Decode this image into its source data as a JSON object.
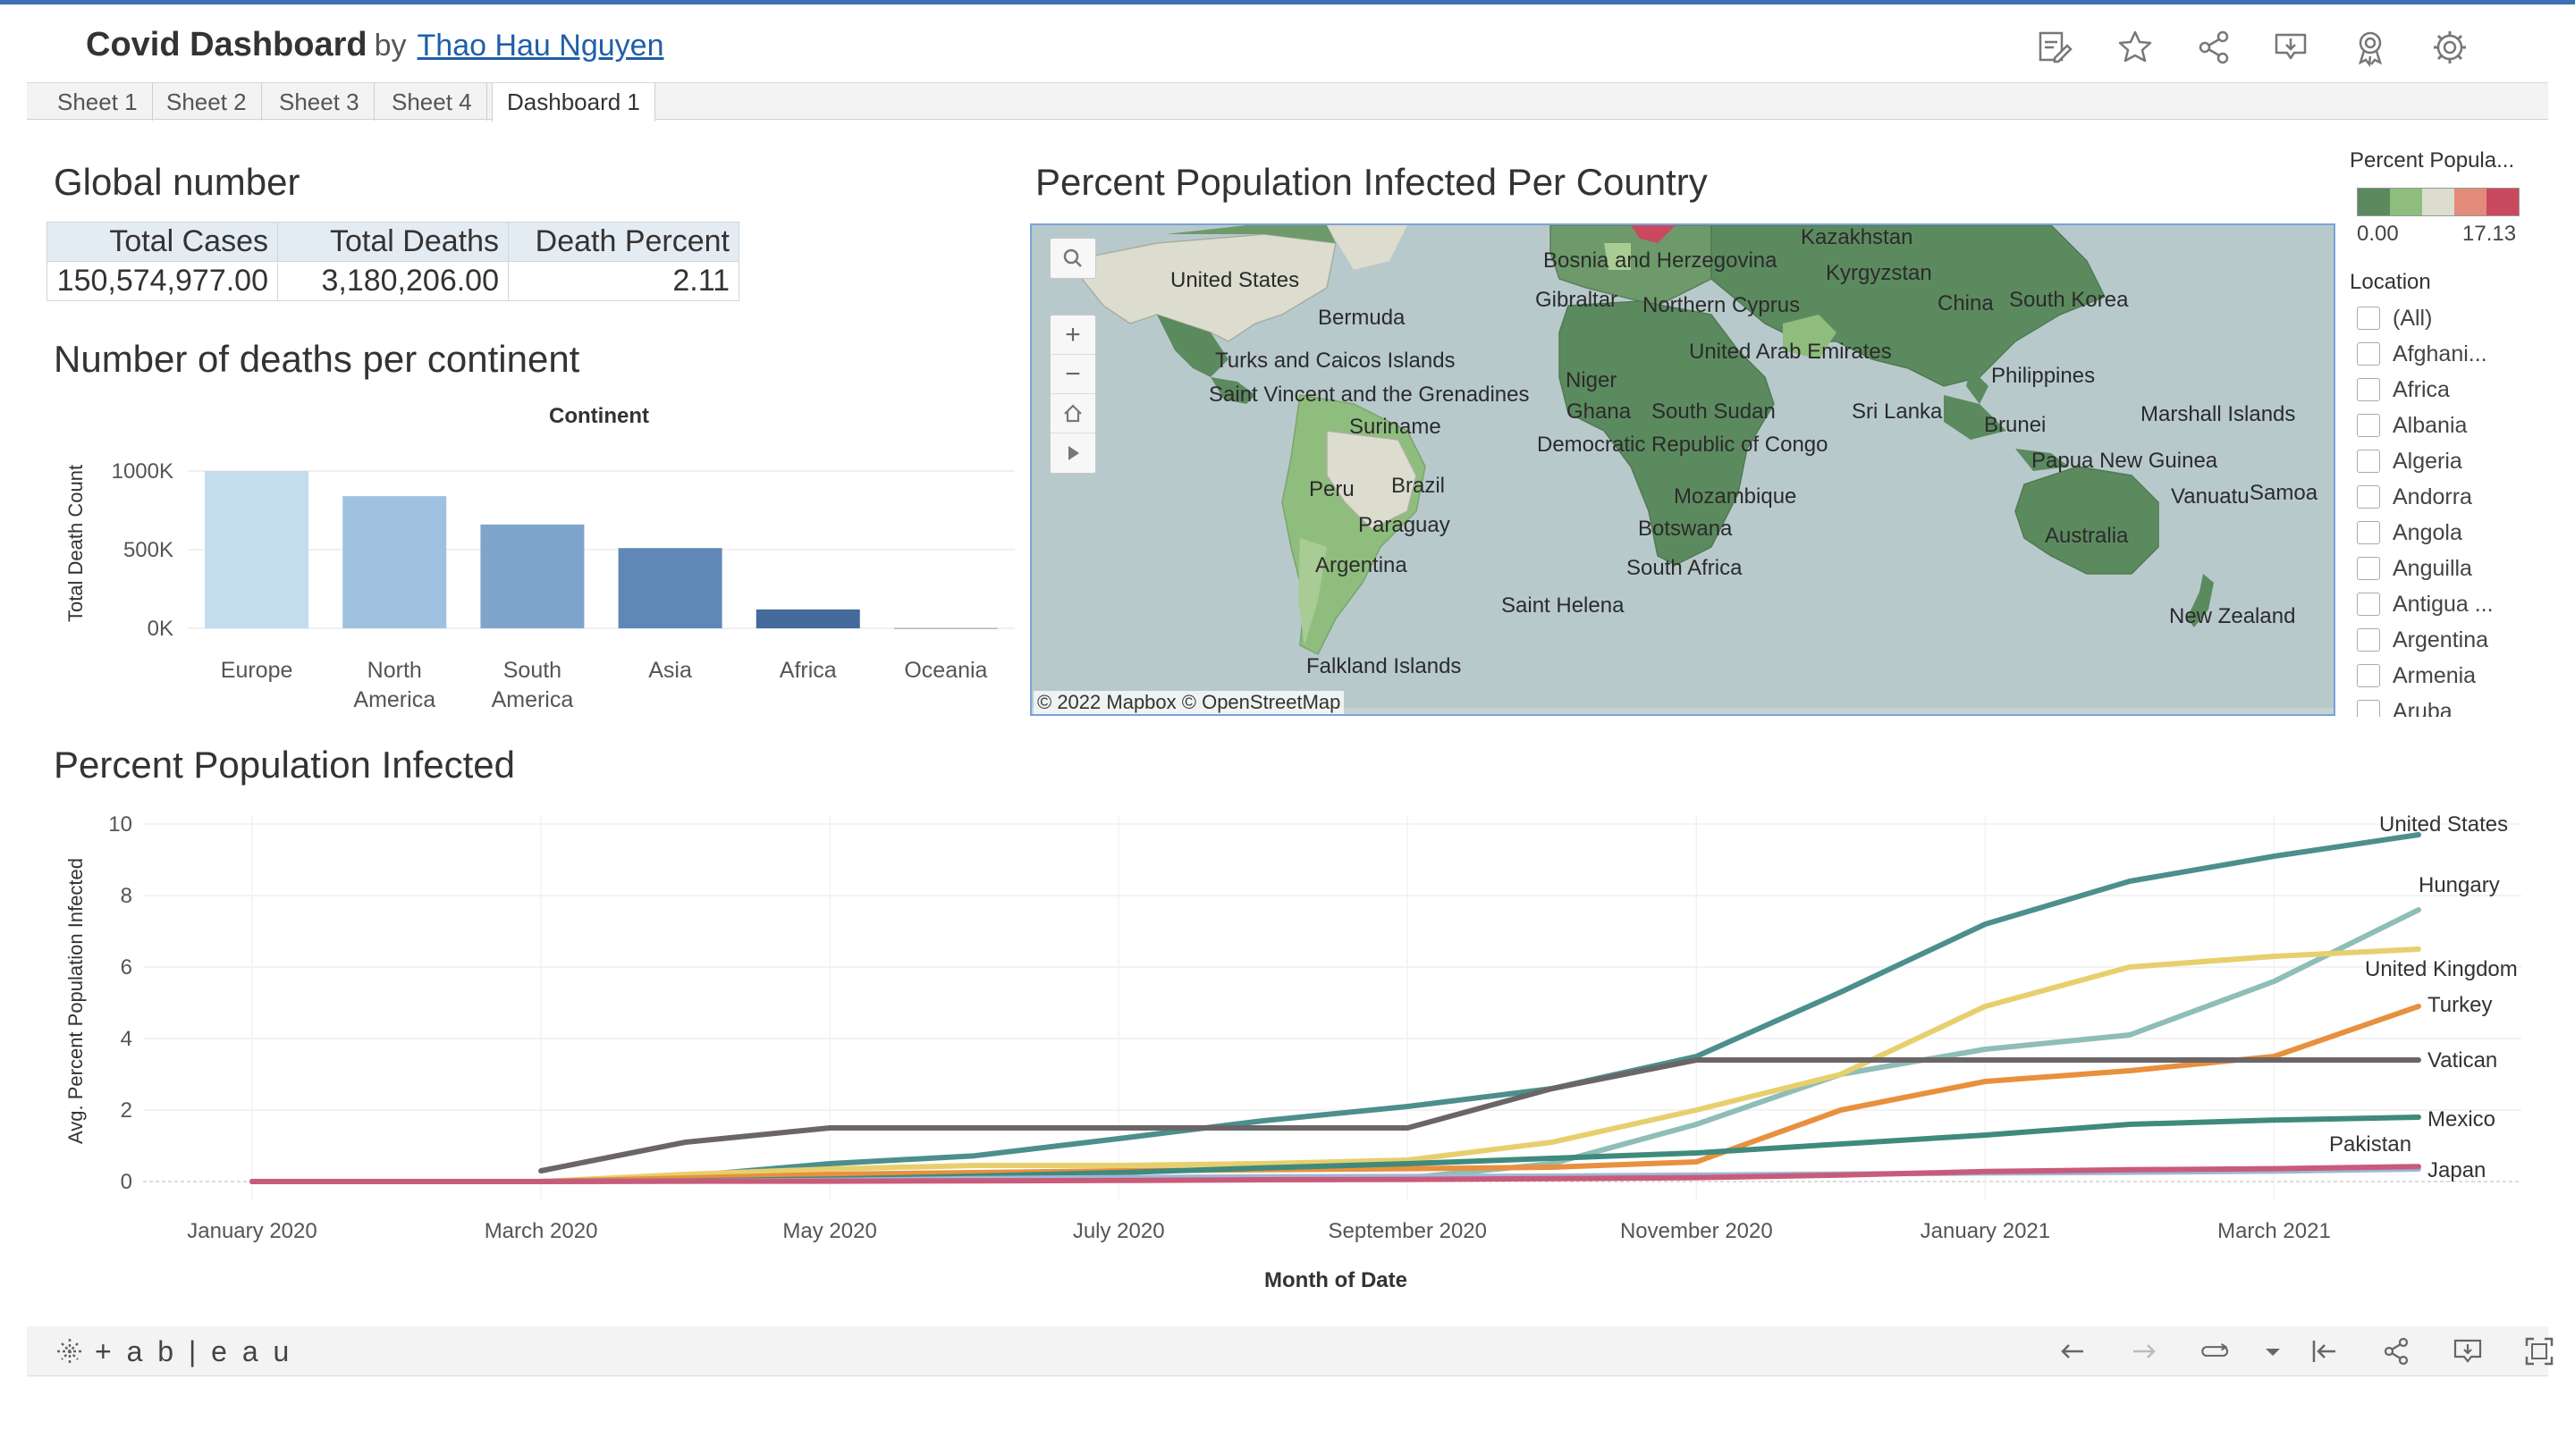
{
  "header": {
    "title": "Covid Dashboard",
    "by": "by",
    "author": "Thao Hau Nguyen",
    "tools": [
      "edit-icon",
      "star-icon",
      "share-icon",
      "download-icon",
      "badge-icon",
      "gear-icon"
    ]
  },
  "tabs": [
    {
      "label": "Sheet 1",
      "active": false
    },
    {
      "label": "Sheet 2",
      "active": false
    },
    {
      "label": "Sheet 3",
      "active": false
    },
    {
      "label": "Sheet 4",
      "active": false
    },
    {
      "label": "Dashboard 1",
      "active": true
    }
  ],
  "global": {
    "title": "Global number",
    "headers": [
      "Total Cases",
      "Total Deaths",
      "Death Percent"
    ],
    "values": [
      "150,574,977.00",
      "3,180,206.00",
      "2.11"
    ]
  },
  "map": {
    "title": "Percent Population Infected Per Country",
    "labels": [
      "United States",
      "Bermuda",
      "Turks and Caicos Islands",
      "Saint Vincent and the Grenadines",
      "Suriname",
      "Peru",
      "Brazil",
      "Paraguay",
      "Argentina",
      "Saint Helena",
      "Falkland Islands",
      "Bosnia and Herzegovina",
      "Gibraltar",
      "Northern Cyprus",
      "Kazakhstan",
      "Kyrgyzstan",
      "China",
      "South Korea",
      "United Arab Emirates",
      "Niger",
      "Ghana",
      "South Sudan",
      "Democratic Republic of Congo",
      "Sri Lanka",
      "Philippines",
      "Brunei",
      "Marshall Islands",
      "Papua New Guinea",
      "Vanuatu",
      "Samoa",
      "Mozambique",
      "Botswana",
      "South Africa",
      "Australia",
      "New Zealand"
    ],
    "attribution": "© 2022 Mapbox  © OpenStreetMap",
    "controls": {
      "search": "search-icon",
      "zoom_in": "+",
      "zoom_out": "−",
      "home": "home-icon",
      "play": "play-icon"
    }
  },
  "legend": {
    "title": "Percent Popula...",
    "min": "0.00",
    "max": "17.13",
    "colors": [
      "#5c8a5f",
      "#8fbd7e",
      "#dcdccf",
      "#e28b7a",
      "#c9495e"
    ]
  },
  "location_filter": {
    "title": "Location",
    "items": [
      "(All)",
      "Afghani...",
      "Africa",
      "Albania",
      "Algeria",
      "Andorra",
      "Angola",
      "Anguilla",
      "Antigua ...",
      "Argentina",
      "Armenia",
      "Aruba"
    ]
  },
  "deaths_chart": {
    "section_title": "Number of deaths per continent",
    "header_label": "Continent",
    "ylabel": "Total Death Count",
    "yticks": [
      "1000K",
      "500K",
      "0K"
    ],
    "ylim": [
      0,
      1000000
    ]
  },
  "infected_chart": {
    "section_title": "Percent Population Infected",
    "ylabel": "Avg. Percent Population Infected",
    "xlabel": "Month of Date",
    "yticks": [
      "10",
      "8",
      "6",
      "4",
      "2",
      "0"
    ],
    "xticks": [
      "January 2020",
      "March 2020",
      "May 2020",
      "July 2020",
      "September 2020",
      "November 2020",
      "January 2021",
      "March 2021"
    ]
  },
  "chart_data": [
    {
      "type": "bar",
      "categories": [
        "Europe",
        "North America",
        "South America",
        "Asia",
        "Africa",
        "Oceania"
      ],
      "values": [
        1000000,
        840000,
        660000,
        510000,
        120000,
        1000
      ],
      "colors": [
        "#c3dcee",
        "#9fc1e0",
        "#7fa4cc",
        "#6088b6",
        "#436a9a",
        "#2e4f7a"
      ],
      "ylabel": "Total Death Count",
      "ylim": [
        0,
        1000000
      ]
    },
    {
      "type": "line",
      "x": [
        "2020-01",
        "2020-02",
        "2020-03",
        "2020-04",
        "2020-05",
        "2020-06",
        "2020-07",
        "2020-08",
        "2020-09",
        "2020-10",
        "2020-11",
        "2020-12",
        "2021-01",
        "2021-02",
        "2021-03",
        "2021-04"
      ],
      "ylim": [
        0,
        10
      ],
      "xlabel": "Month of Date",
      "ylabel": "Avg. Percent Population Infected",
      "series": [
        {
          "name": "United States",
          "color": "#4c8f8c",
          "values": [
            0,
            0,
            0,
            0.15,
            0.5,
            0.72,
            1.2,
            1.7,
            2.1,
            2.6,
            3.5,
            5.3,
            7.2,
            8.4,
            9.1,
            9.7
          ]
        },
        {
          "name": "Hungary",
          "color": "#8fbdb8",
          "values": [
            0,
            0,
            0,
            0.05,
            0.05,
            0.05,
            0.05,
            0.06,
            0.1,
            0.5,
            1.6,
            3.0,
            3.7,
            4.1,
            5.6,
            7.6
          ]
        },
        {
          "name": "United Kingdom",
          "color": "#e8cf6e",
          "values": [
            0,
            0,
            0,
            0.2,
            0.35,
            0.45,
            0.45,
            0.5,
            0.6,
            1.1,
            2.0,
            3.0,
            4.9,
            6.0,
            6.3,
            6.5
          ]
        },
        {
          "name": "Turkey",
          "color": "#e8903e",
          "values": [
            0,
            0,
            0,
            0.1,
            0.2,
            0.25,
            0.3,
            0.33,
            0.36,
            0.4,
            0.55,
            2.0,
            2.8,
            3.1,
            3.5,
            4.9
          ]
        },
        {
          "name": "Vatican",
          "color": "#6b6567",
          "values": [
            0,
            0,
            0.3,
            1.1,
            1.5,
            1.5,
            1.5,
            1.5,
            1.5,
            2.6,
            3.4,
            3.4,
            3.4,
            3.4,
            3.4,
            3.4
          ]
        },
        {
          "name": "Mexico",
          "color": "#3f8a7c",
          "values": [
            0,
            0,
            0,
            0.02,
            0.07,
            0.15,
            0.25,
            0.38,
            0.5,
            0.65,
            0.8,
            1.05,
            1.3,
            1.6,
            1.72,
            1.8
          ]
        },
        {
          "name": "Pakistan",
          "color": "#9fb7d6",
          "values": [
            0,
            0,
            0,
            0.01,
            0.03,
            0.08,
            0.11,
            0.13,
            0.14,
            0.15,
            0.18,
            0.21,
            0.24,
            0.26,
            0.29,
            0.35
          ]
        },
        {
          "name": "Japan",
          "color": "#c95b7a",
          "values": [
            0,
            0,
            0,
            0.01,
            0.01,
            0.02,
            0.03,
            0.05,
            0.06,
            0.08,
            0.11,
            0.18,
            0.28,
            0.33,
            0.36,
            0.42
          ]
        }
      ]
    }
  ],
  "footer": {
    "logo": "+ a b | e a u",
    "tools": [
      "undo-icon",
      "redo-icon",
      "revert-icon",
      "dropdown-icon",
      "reset-icon",
      "share-icon",
      "download-icon",
      "fullscreen-icon"
    ]
  }
}
